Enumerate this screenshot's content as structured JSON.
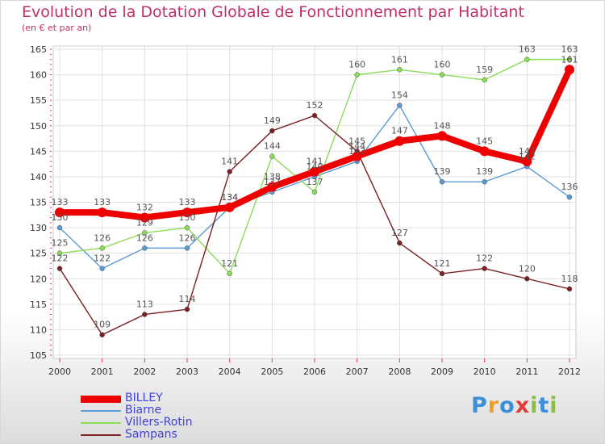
{
  "chart_data": {
    "type": "line",
    "title": "Evolution de la Dotation Globale de Fonctionnement par Habitant",
    "subtitle": "(en € et par an)",
    "x": [
      "2000",
      "2001",
      "2002",
      "2003",
      "2004",
      "2005",
      "2006",
      "2007",
      "2008",
      "2009",
      "2010",
      "2011",
      "2012"
    ],
    "ylim": [
      105,
      165
    ],
    "yticks": [
      105,
      110,
      115,
      120,
      125,
      130,
      135,
      140,
      145,
      150,
      155,
      160,
      165
    ],
    "grid": true,
    "legend_position": "bottom-left",
    "series": [
      {
        "name": "BILLEY",
        "color": "#ee0000",
        "values": [
          133,
          133,
          132,
          133,
          134,
          138,
          141,
          144,
          147,
          148,
          145,
          143,
          161
        ]
      },
      {
        "name": "Biarne",
        "color": "#5b9bd5",
        "values": [
          130,
          122,
          126,
          126,
          134,
          137,
          140,
          143,
          154,
          139,
          139,
          142,
          136
        ]
      },
      {
        "name": "Villers-Rotin",
        "color": "#88dd55",
        "values": [
          125,
          126,
          129,
          130,
          121,
          144,
          137,
          160,
          161,
          160,
          159,
          163,
          163
        ]
      },
      {
        "name": "Sampans",
        "color": "#7a1f22",
        "values": [
          122,
          109,
          113,
          114,
          141,
          149,
          152,
          145,
          127,
          121,
          122,
          120,
          118
        ]
      }
    ]
  },
  "logo": {
    "letters": [
      "P",
      "r",
      "o",
      "x",
      "i",
      "t",
      "i"
    ],
    "colors": [
      "#3b8fd8",
      "#f0a020",
      "#3b8fd8",
      "#e03a3a",
      "#88c040",
      "#3b8fd8",
      "#88c040"
    ]
  }
}
